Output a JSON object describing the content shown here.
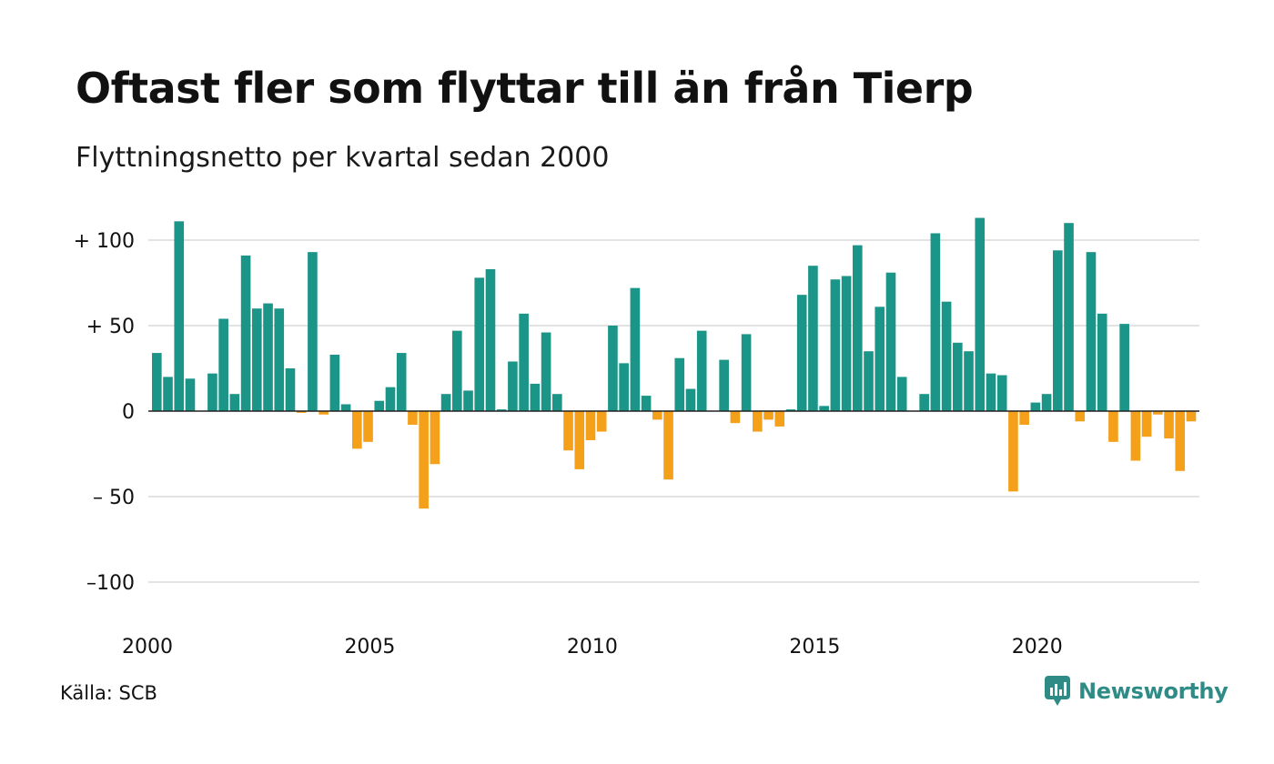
{
  "title": "Oftast fler som flyttar till än från Tierp",
  "subtitle": "Flyttningsnetto per kvartal sedan 2000",
  "source": "Källa: SCB",
  "brand": {
    "name": "Newsworthy",
    "icon": "newsworthy-logo-icon"
  },
  "colors": {
    "positive": "#1a9587",
    "negative": "#f5a01a",
    "grid": "#e3e3e3",
    "zero_line": "#222222",
    "brand": "#2e8b86"
  },
  "chart_data": {
    "type": "bar",
    "title": "Oftast fler som flyttar till än från Tierp",
    "subtitle": "Flyttningsnetto per kvartal sedan 2000",
    "xlabel": "",
    "ylabel": "",
    "ylim": [
      -110,
      115
    ],
    "y_ticks": [
      100,
      50,
      0,
      -50,
      -100
    ],
    "y_tick_labels": [
      "+ 100",
      "+  50",
      "0",
      "– 50",
      "–100"
    ],
    "x_tick_labels": [
      "2000",
      "2005",
      "2010",
      "2015",
      "2020"
    ],
    "x_tick_values": [
      2000,
      2005,
      2010,
      2015,
      2020
    ],
    "grid": true,
    "legend": "none",
    "period": "quarter",
    "start": "2000 Q1",
    "values": [
      34,
      20,
      111,
      19,
      0,
      22,
      54,
      10,
      91,
      60,
      63,
      60,
      25,
      -1,
      93,
      -2,
      33,
      4,
      -22,
      -18,
      6,
      14,
      34,
      -8,
      -57,
      -31,
      10,
      47,
      12,
      78,
      83,
      1,
      29,
      57,
      16,
      46,
      10,
      -23,
      -34,
      -17,
      -12,
      50,
      28,
      72,
      9,
      -5,
      -40,
      31,
      13,
      47,
      0,
      30,
      -7,
      45,
      -12,
      -5,
      -9,
      1,
      68,
      85,
      3,
      77,
      79,
      97,
      35,
      61,
      81,
      20,
      0,
      10,
      104,
      64,
      40,
      35,
      113,
      22,
      21,
      -47,
      -8,
      5,
      10,
      94,
      110,
      -6,
      93,
      57,
      -18,
      51,
      -29,
      -15,
      -2,
      -16,
      -35,
      -6
    ]
  }
}
